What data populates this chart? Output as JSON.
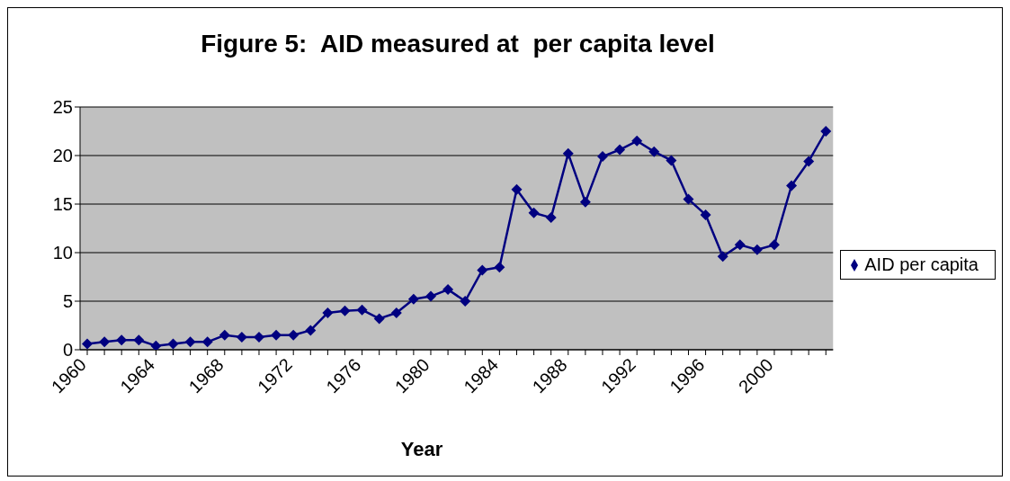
{
  "chart_data": {
    "type": "line",
    "title": "Figure 5:  AID measured at  per capita level",
    "xlabel": "Year",
    "categories": [
      "1960",
      null,
      null,
      null,
      "1964",
      null,
      null,
      null,
      "1968",
      null,
      null,
      null,
      "1972",
      null,
      null,
      null,
      "1976",
      null,
      null,
      null,
      "1980",
      null,
      null,
      null,
      "1984",
      null,
      null,
      null,
      "1988",
      null,
      null,
      null,
      "1992",
      null,
      null,
      null,
      "1996",
      null,
      null,
      null,
      "2000",
      null,
      null,
      null
    ],
    "series": [
      {
        "name": "AID per capita",
        "color": "#000080",
        "values": [
          0.6,
          0.8,
          1.0,
          1.0,
          0.4,
          0.6,
          0.8,
          0.8,
          1.5,
          1.3,
          1.3,
          1.5,
          1.5,
          2.0,
          3.8,
          4.0,
          4.1,
          3.2,
          3.8,
          5.2,
          5.5,
          6.2,
          5.0,
          8.2,
          8.5,
          16.5,
          14.1,
          13.6,
          20.2,
          15.2,
          19.9,
          20.6,
          21.5,
          20.4,
          19.5,
          15.5,
          13.9,
          9.6,
          10.8,
          10.3,
          10.8,
          16.9,
          19.4,
          22.5
        ]
      }
    ],
    "ylim": [
      0,
      25
    ],
    "yticks": [
      0,
      5,
      10,
      15,
      20,
      25
    ],
    "grid": "y",
    "legend": "right",
    "marker": "diamond",
    "line_style": "solid"
  }
}
